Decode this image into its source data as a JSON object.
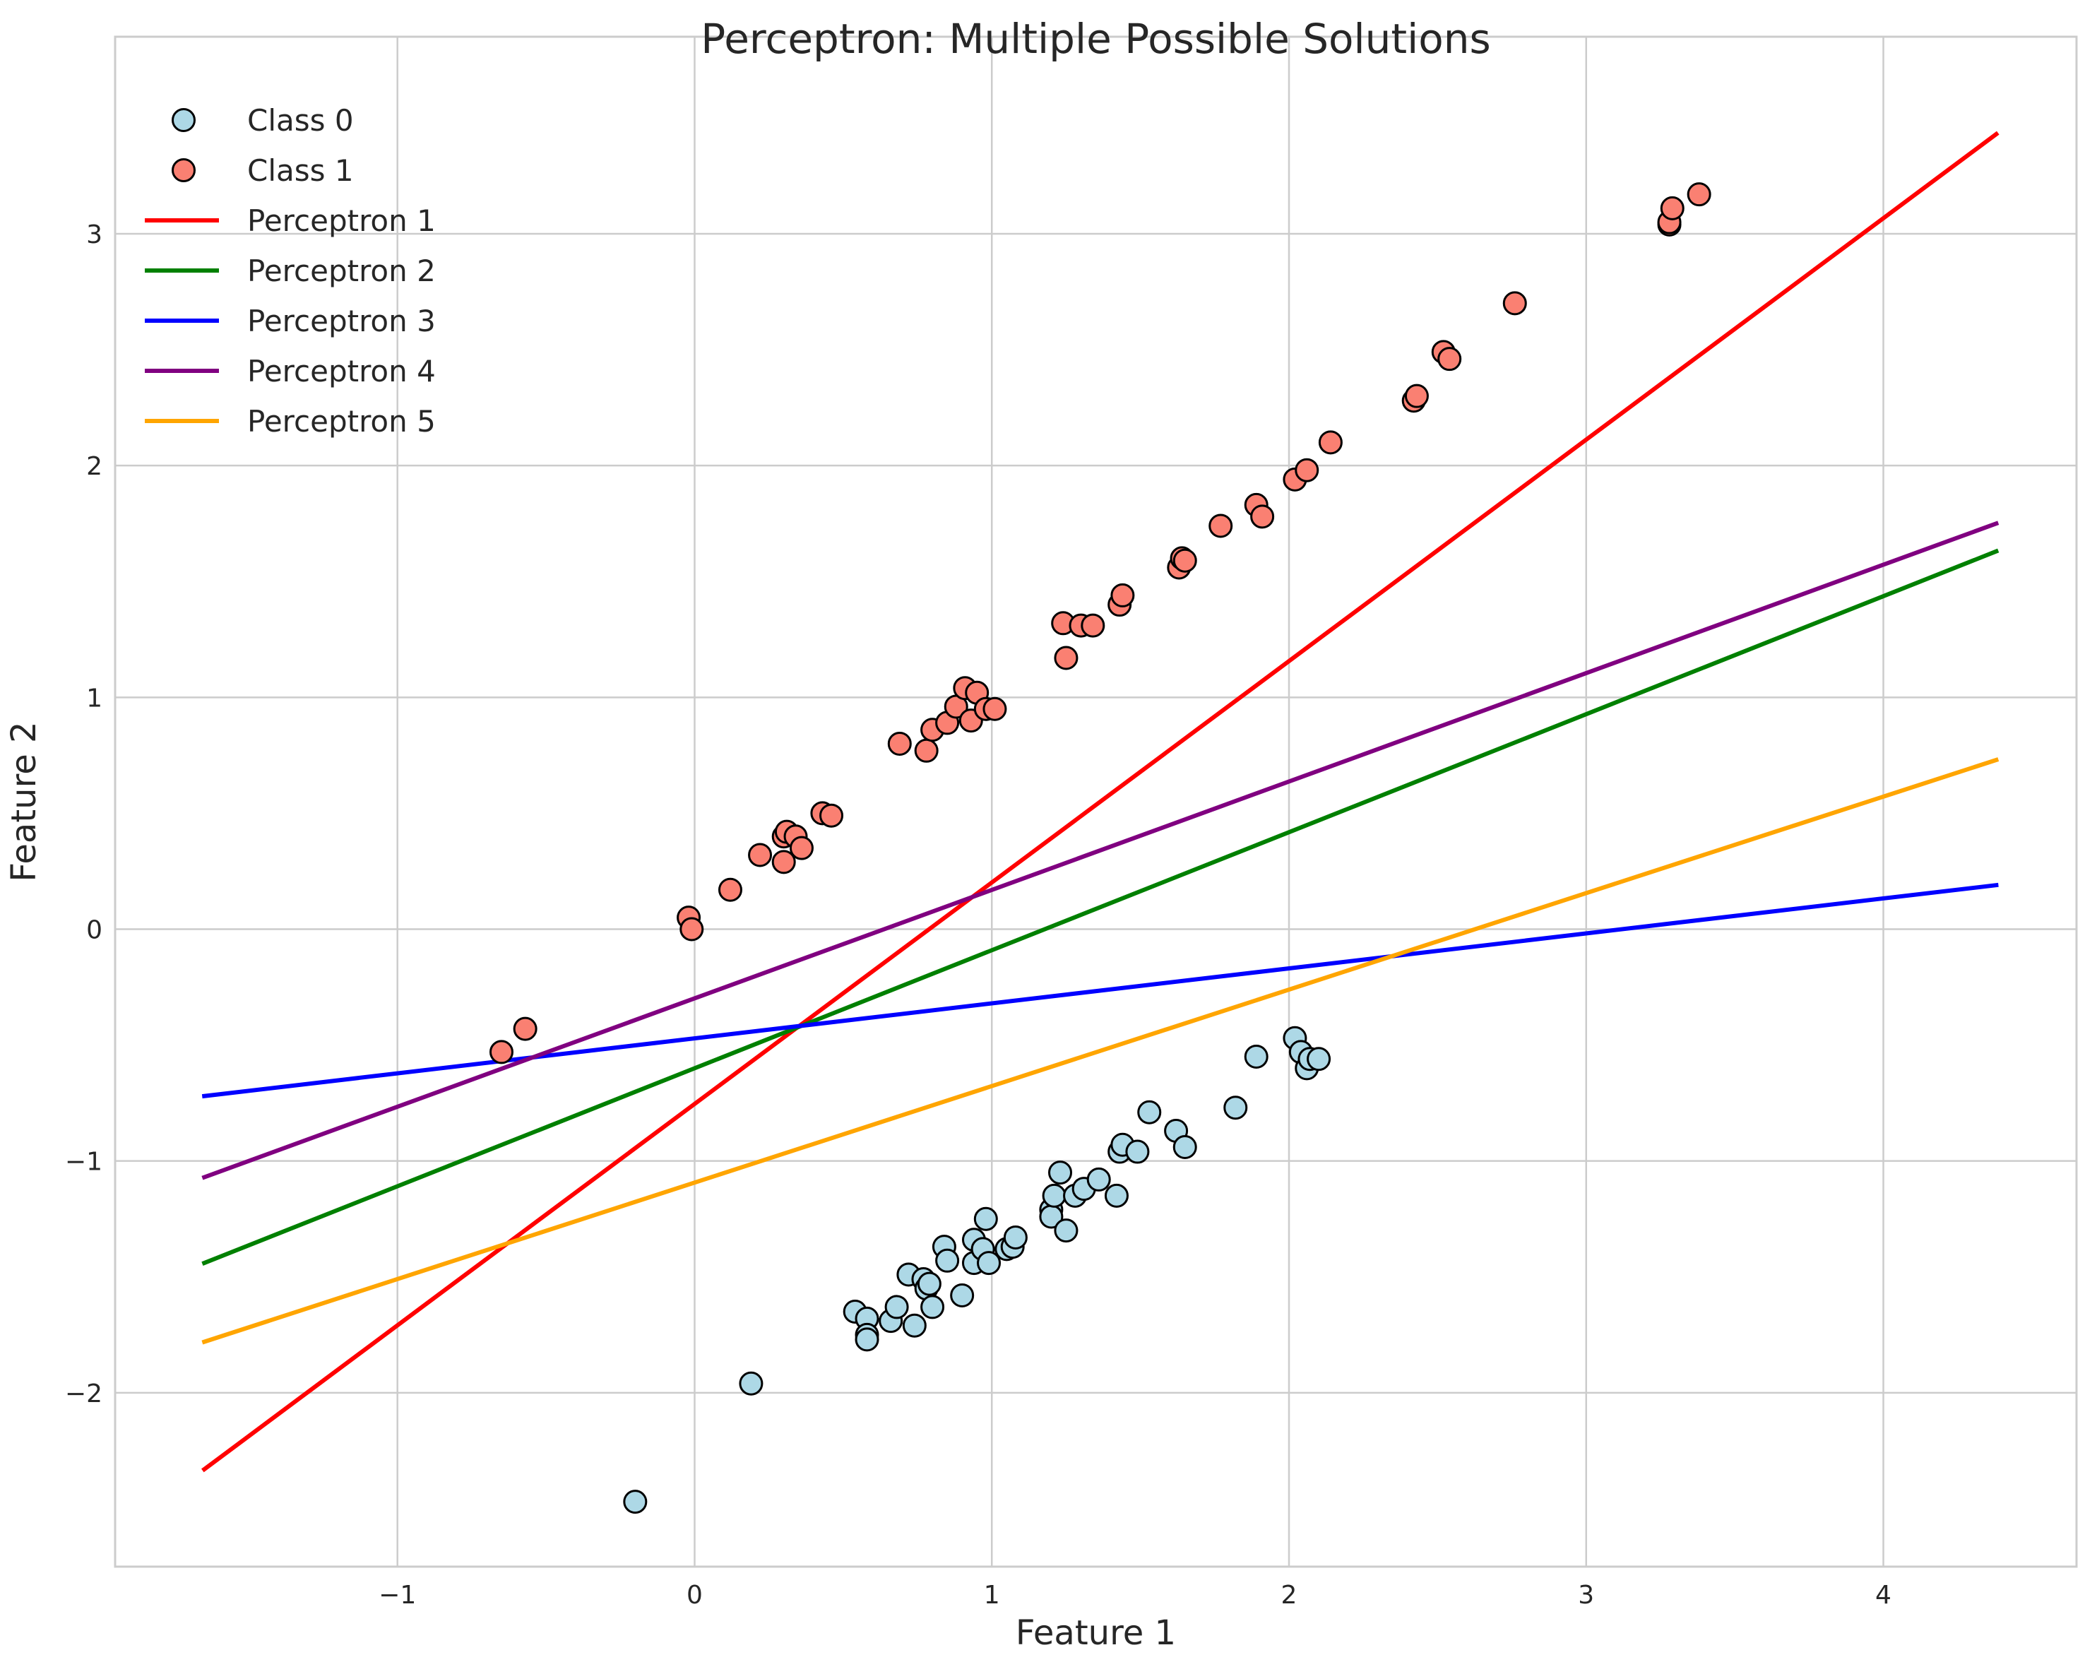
{
  "chart_data": {
    "type": "scatter",
    "title": "Perceptron: Multiple Possible Solutions",
    "xlabel": "Feature 1",
    "ylabel": "Feature 2",
    "xlim": [
      -1.95,
      4.65
    ],
    "ylim": [
      -2.75,
      3.85
    ],
    "xticks": [
      -1,
      0,
      1,
      2,
      3,
      4
    ],
    "yticks": [
      -2,
      -1,
      0,
      1,
      2,
      3
    ],
    "grid": true,
    "legend_position": "top-left",
    "scatter_series": [
      {
        "name": "Class 0",
        "color": "#add8e6",
        "points": [
          [
            -0.2,
            -2.47
          ],
          [
            0.19,
            -1.96
          ],
          [
            0.54,
            -1.65
          ],
          [
            0.58,
            -1.68
          ],
          [
            0.58,
            -1.75
          ],
          [
            0.58,
            -1.77
          ],
          [
            0.66,
            -1.69
          ],
          [
            0.68,
            -1.63
          ],
          [
            0.72,
            -1.49
          ],
          [
            0.74,
            -1.71
          ],
          [
            0.77,
            -1.51
          ],
          [
            0.78,
            -1.55
          ],
          [
            0.79,
            -1.53
          ],
          [
            0.8,
            -1.63
          ],
          [
            0.84,
            -1.37
          ],
          [
            0.85,
            -1.43
          ],
          [
            0.9,
            -1.58
          ],
          [
            0.94,
            -1.34
          ],
          [
            0.94,
            -1.44
          ],
          [
            0.97,
            -1.38
          ],
          [
            0.98,
            -1.25
          ],
          [
            0.99,
            -1.44
          ],
          [
            1.05,
            -1.38
          ],
          [
            1.07,
            -1.37
          ],
          [
            1.08,
            -1.33
          ],
          [
            1.2,
            -1.21
          ],
          [
            1.2,
            -1.24
          ],
          [
            1.21,
            -1.15
          ],
          [
            1.23,
            -1.05
          ],
          [
            1.25,
            -1.3
          ],
          [
            1.28,
            -1.15
          ],
          [
            1.31,
            -1.12
          ],
          [
            1.36,
            -1.08
          ],
          [
            1.42,
            -1.15
          ],
          [
            1.43,
            -0.96
          ],
          [
            1.44,
            -0.93
          ],
          [
            1.49,
            -0.96
          ],
          [
            1.53,
            -0.79
          ],
          [
            1.62,
            -0.87
          ],
          [
            1.65,
            -0.94
          ],
          [
            1.82,
            -0.77
          ],
          [
            1.89,
            -0.55
          ],
          [
            2.02,
            -0.47
          ],
          [
            2.04,
            -0.53
          ],
          [
            2.06,
            -0.6
          ],
          [
            2.07,
            -0.56
          ],
          [
            2.1,
            -0.56
          ]
        ]
      },
      {
        "name": "Class 1",
        "color": "#fa8072",
        "points": [
          [
            -0.65,
            -0.53
          ],
          [
            -0.57,
            -0.43
          ],
          [
            -0.02,
            0.05
          ],
          [
            -0.01,
            0.0
          ],
          [
            0.12,
            0.17
          ],
          [
            0.22,
            0.32
          ],
          [
            0.3,
            0.29
          ],
          [
            0.3,
            0.4
          ],
          [
            0.31,
            0.42
          ],
          [
            0.34,
            0.4
          ],
          [
            0.36,
            0.35
          ],
          [
            0.43,
            0.5
          ],
          [
            0.46,
            0.49
          ],
          [
            0.69,
            0.8
          ],
          [
            0.78,
            0.77
          ],
          [
            0.8,
            0.86
          ],
          [
            0.85,
            0.89
          ],
          [
            0.88,
            0.96
          ],
          [
            0.91,
            1.04
          ],
          [
            0.93,
            0.9
          ],
          [
            0.95,
            1.02
          ],
          [
            0.98,
            0.95
          ],
          [
            1.01,
            0.95
          ],
          [
            1.24,
            1.32
          ],
          [
            1.25,
            1.17
          ],
          [
            1.3,
            1.31
          ],
          [
            1.34,
            1.31
          ],
          [
            1.43,
            1.4
          ],
          [
            1.44,
            1.44
          ],
          [
            1.63,
            1.56
          ],
          [
            1.64,
            1.6
          ],
          [
            1.65,
            1.59
          ],
          [
            1.77,
            1.74
          ],
          [
            1.89,
            1.83
          ],
          [
            1.91,
            1.78
          ],
          [
            2.02,
            1.94
          ],
          [
            2.06,
            1.98
          ],
          [
            2.14,
            2.1
          ],
          [
            2.42,
            2.28
          ],
          [
            2.43,
            2.3
          ],
          [
            2.52,
            2.49
          ],
          [
            2.54,
            2.46
          ],
          [
            2.76,
            2.7
          ],
          [
            3.28,
            3.04
          ],
          [
            3.28,
            3.05
          ],
          [
            3.29,
            3.11
          ],
          [
            3.38,
            3.17
          ]
        ]
      }
    ],
    "line_series": [
      {
        "name": "Perceptron 1",
        "color": "#ff0000",
        "x": [
          -1.65,
          4.38
        ],
        "y": [
          -2.33,
          3.43
        ]
      },
      {
        "name": "Perceptron 2",
        "color": "#008000",
        "x": [
          -1.65,
          4.38
        ],
        "y": [
          -1.44,
          1.63
        ]
      },
      {
        "name": "Perceptron 3",
        "color": "#0000ff",
        "x": [
          -1.65,
          4.38
        ],
        "y": [
          -0.72,
          0.19
        ]
      },
      {
        "name": "Perceptron 4",
        "color": "#800080",
        "x": [
          -1.65,
          4.38
        ],
        "y": [
          -1.07,
          1.75
        ]
      },
      {
        "name": "Perceptron 5",
        "color": "#ffa500",
        "x": [
          -1.65,
          4.38
        ],
        "y": [
          -1.78,
          0.73
        ]
      }
    ]
  }
}
